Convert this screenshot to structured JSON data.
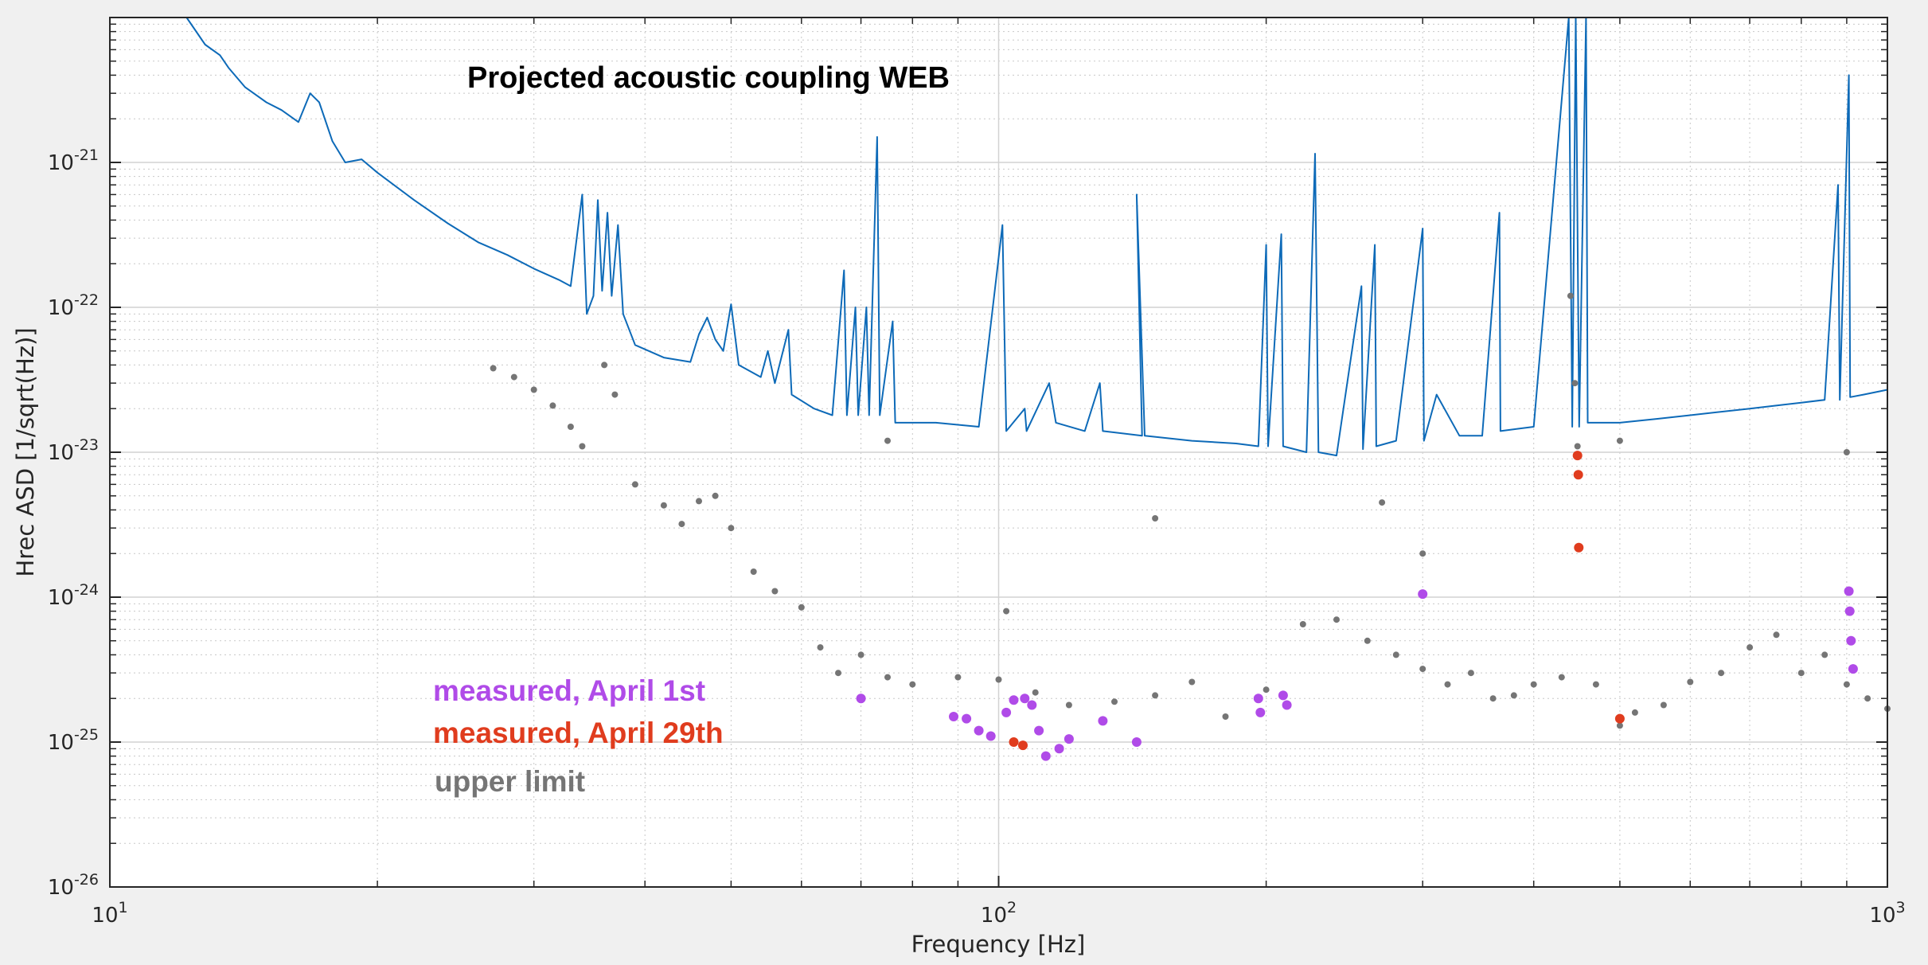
{
  "chart_data": {
    "type": "line",
    "title": "Projected acoustic coupling WEB",
    "xlabel": "Frequency [Hz]",
    "ylabel": "Hrec ASD [1/sqrt(Hz)]",
    "xscale": "log",
    "yscale": "log",
    "xlim": [
      10,
      1000
    ],
    "ylim": [
      1e-26,
      1e-20
    ],
    "grid": true,
    "x_ticks": [
      {
        "value": 10,
        "base": "10",
        "exp": "1"
      },
      {
        "value": 100,
        "base": "10",
        "exp": "2"
      },
      {
        "value": 1000,
        "base": "10",
        "exp": "3"
      }
    ],
    "y_ticks": [
      {
        "value": 1e-26,
        "base": "10",
        "exp": "-26"
      },
      {
        "value": 1e-25,
        "base": "10",
        "exp": "-25"
      },
      {
        "value": 1e-24,
        "base": "10",
        "exp": "-24"
      },
      {
        "value": 1e-23,
        "base": "10",
        "exp": "-23"
      },
      {
        "value": 1e-22,
        "base": "10",
        "exp": "-22"
      },
      {
        "value": 1e-21,
        "base": "10",
        "exp": "-21"
      }
    ],
    "legend": {
      "placement": "lower-left",
      "entries": [
        {
          "label": "measured, April 1st",
          "color": "#b04be8"
        },
        {
          "label": "measured, April 29th",
          "color": "#e03c1e"
        },
        {
          "label": "upper limit",
          "color": "#757575"
        }
      ]
    },
    "series": [
      {
        "kind": "line",
        "color": "#0d6ab8",
        "points": [
          [
            12.2,
            1e-20
          ],
          [
            12.8,
            6.5e-21
          ],
          [
            13.3,
            5.5e-21
          ],
          [
            13.6,
            4.5e-21
          ],
          [
            14.2,
            3.3e-21
          ],
          [
            15.0,
            2.6e-21
          ],
          [
            15.6,
            2.3e-21
          ],
          [
            16.3,
            1.9e-21
          ],
          [
            16.8,
            3e-21
          ],
          [
            17.2,
            2.6e-21
          ],
          [
            17.8,
            1.4e-21
          ],
          [
            18.4,
            1e-21
          ],
          [
            19.2,
            1.05e-21
          ],
          [
            20.0,
            8.5e-22
          ],
          [
            22.0,
            5.5e-22
          ],
          [
            24.0,
            3.8e-22
          ],
          [
            26.0,
            2.8e-22
          ],
          [
            28.0,
            2.3e-22
          ],
          [
            30.0,
            1.85e-22
          ],
          [
            32.0,
            1.55e-22
          ],
          [
            33.0,
            1.4e-22
          ],
          [
            34.0,
            6e-22
          ],
          [
            34.4,
            9e-23
          ],
          [
            35.0,
            1.2e-22
          ],
          [
            35.4,
            5.5e-22
          ],
          [
            35.8,
            1.3e-22
          ],
          [
            36.3,
            4.5e-22
          ],
          [
            36.7,
            1.2e-22
          ],
          [
            37.3,
            3.7e-22
          ],
          [
            37.8,
            9e-23
          ],
          [
            39.0,
            5.5e-23
          ],
          [
            42.0,
            4.5e-23
          ],
          [
            45.0,
            4.2e-23
          ],
          [
            46.0,
            6.5e-23
          ],
          [
            47.0,
            8.5e-23
          ],
          [
            48.0,
            6e-23
          ],
          [
            49.0,
            5e-23
          ],
          [
            50.0,
            1.05e-22
          ],
          [
            51.0,
            4e-23
          ],
          [
            54.0,
            3.3e-23
          ],
          [
            55.0,
            5e-23
          ],
          [
            56.0,
            3e-23
          ],
          [
            58.0,
            7e-23
          ],
          [
            58.5,
            2.5e-23
          ],
          [
            62.0,
            2e-23
          ],
          [
            65.0,
            1.8e-23
          ],
          [
            67.0,
            1.8e-22
          ],
          [
            67.5,
            1.8e-23
          ],
          [
            69.0,
            1e-22
          ],
          [
            69.5,
            1.8e-23
          ],
          [
            71.0,
            1e-22
          ],
          [
            71.5,
            1.8e-23
          ],
          [
            73.0,
            1.5e-21
          ],
          [
            73.5,
            1.8e-23
          ],
          [
            76.0,
            8e-23
          ],
          [
            76.5,
            1.6e-23
          ],
          [
            85.0,
            1.6e-23
          ],
          [
            95.0,
            1.5e-23
          ],
          [
            101.0,
            3.7e-22
          ],
          [
            102.0,
            1.4e-23
          ],
          [
            107.0,
            2e-23
          ],
          [
            107.5,
            1.4e-23
          ],
          [
            114.0,
            3e-23
          ],
          [
            116.0,
            1.6e-23
          ],
          [
            125.0,
            1.4e-23
          ],
          [
            130.0,
            3e-23
          ],
          [
            131.0,
            1.4e-23
          ],
          [
            145.0,
            1.3e-23
          ],
          [
            143.0,
            6e-22
          ],
          [
            146.0,
            1.3e-23
          ],
          [
            165.0,
            1.2e-23
          ],
          [
            185.0,
            1.15e-23
          ],
          [
            196.0,
            1.1e-23
          ],
          [
            200.0,
            2.7e-22
          ],
          [
            201.0,
            1.1e-23
          ],
          [
            208.0,
            3.2e-22
          ],
          [
            209.0,
            1.1e-23
          ],
          [
            222.0,
            1e-23
          ],
          [
            227.0,
            1.15e-21
          ],
          [
            229.0,
            1e-23
          ],
          [
            240.0,
            9.5e-24
          ],
          [
            256.0,
            1.4e-22
          ],
          [
            257.0,
            1.05e-23
          ],
          [
            265.0,
            2.7e-22
          ],
          [
            266.0,
            1.1e-23
          ],
          [
            280.0,
            1.2e-23
          ],
          [
            300.0,
            3.5e-22
          ],
          [
            301.0,
            1.2e-23
          ],
          [
            311.0,
            2.5e-23
          ],
          [
            330.0,
            1.3e-23
          ],
          [
            350.0,
            1.3e-23
          ],
          [
            366.0,
            4.5e-22
          ],
          [
            367.0,
            1.4e-23
          ],
          [
            400.0,
            1.5e-23
          ],
          [
            438.0,
            1e-20
          ],
          [
            442.0,
            1.5e-23
          ],
          [
            446.0,
            1e-20
          ],
          [
            450.0,
            1.5e-23
          ],
          [
            458.0,
            1e-20
          ],
          [
            460.0,
            1.6e-23
          ],
          [
            500.0,
            1.6e-23
          ],
          [
            550.0,
            1.7e-23
          ],
          [
            600.0,
            1.8e-23
          ],
          [
            700.0,
            2e-23
          ],
          [
            800.0,
            2.2e-23
          ],
          [
            850.0,
            2.3e-23
          ],
          [
            880.0,
            7e-22
          ],
          [
            884.0,
            2.3e-23
          ],
          [
            905.0,
            4e-21
          ],
          [
            908.0,
            2.4e-23
          ],
          [
            940.0,
            2.5e-23
          ],
          [
            1000.0,
            2.7e-23
          ]
        ]
      },
      {
        "kind": "scatter",
        "name": "upper limit",
        "color": "#757575",
        "points": [
          [
            27.0,
            3.8e-23
          ],
          [
            28.5,
            3.3e-23
          ],
          [
            30.0,
            2.7e-23
          ],
          [
            31.5,
            2.1e-23
          ],
          [
            33.0,
            1.5e-23
          ],
          [
            34.0,
            1.1e-23
          ],
          [
            36.0,
            4e-23
          ],
          [
            37.0,
            2.5e-23
          ],
          [
            39.0,
            6e-24
          ],
          [
            42.0,
            4.3e-24
          ],
          [
            44.0,
            3.2e-24
          ],
          [
            46.0,
            4.6e-24
          ],
          [
            48.0,
            5e-24
          ],
          [
            50.0,
            3e-24
          ],
          [
            53.0,
            1.5e-24
          ],
          [
            56.0,
            1.1e-24
          ],
          [
            60.0,
            8.5e-25
          ],
          [
            63.0,
            4.5e-25
          ],
          [
            66.0,
            3e-25
          ],
          [
            70.0,
            4e-25
          ],
          [
            75.0,
            2.8e-25
          ],
          [
            80.0,
            2.5e-25
          ],
          [
            90.0,
            2.8e-25
          ],
          [
            100.0,
            2.7e-25
          ],
          [
            110.0,
            2.2e-25
          ],
          [
            120.0,
            1.8e-25
          ],
          [
            135.0,
            1.9e-25
          ],
          [
            150.0,
            2.1e-25
          ],
          [
            165.0,
            2.6e-25
          ],
          [
            180.0,
            1.5e-25
          ],
          [
            200.0,
            2.3e-25
          ],
          [
            220.0,
            6.5e-25
          ],
          [
            240.0,
            7e-25
          ],
          [
            260.0,
            5e-25
          ],
          [
            280.0,
            4e-25
          ],
          [
            300.0,
            3.2e-25
          ],
          [
            320.0,
            2.5e-25
          ],
          [
            340.0,
            3e-25
          ],
          [
            360.0,
            2e-25
          ],
          [
            380.0,
            2.1e-25
          ],
          [
            400.0,
            2.5e-25
          ],
          [
            430.0,
            2.8e-25
          ],
          [
            470.0,
            2.5e-25
          ],
          [
            500.0,
            1.3e-25
          ],
          [
            520.0,
            1.6e-25
          ],
          [
            560.0,
            1.8e-25
          ],
          [
            600.0,
            2.6e-25
          ],
          [
            650.0,
            3e-25
          ],
          [
            700.0,
            4.5e-25
          ],
          [
            750.0,
            5.5e-25
          ],
          [
            800.0,
            3e-25
          ],
          [
            850.0,
            4e-25
          ],
          [
            900.0,
            2.5e-25
          ],
          [
            950.0,
            2e-25
          ],
          [
            1000.0,
            1.7e-25
          ],
          [
            440.0,
            1.2e-22
          ],
          [
            445.0,
            3e-23
          ],
          [
            448.0,
            1.1e-23
          ],
          [
            500.0,
            1.2e-23
          ],
          [
            900.0,
            1e-23
          ],
          [
            300.0,
            2e-24
          ],
          [
            270.0,
            4.5e-24
          ],
          [
            150.0,
            3.5e-24
          ],
          [
            75.0,
            1.2e-23
          ],
          [
            102.0,
            8e-25
          ]
        ]
      },
      {
        "kind": "scatter",
        "name": "measured, April 1st",
        "color": "#b04be8",
        "points": [
          [
            70.0,
            2e-25
          ],
          [
            89.0,
            1.5e-25
          ],
          [
            92.0,
            1.45e-25
          ],
          [
            95.0,
            1.2e-25
          ],
          [
            98.0,
            1.1e-25
          ],
          [
            102.0,
            1.6e-25
          ],
          [
            104.0,
            1.95e-25
          ],
          [
            107.0,
            2e-25
          ],
          [
            109.0,
            1.8e-25
          ],
          [
            111.0,
            1.2e-25
          ],
          [
            113.0,
            8e-26
          ],
          [
            117.0,
            9e-26
          ],
          [
            120.0,
            1.05e-25
          ],
          [
            131.0,
            1.4e-25
          ],
          [
            143.0,
            1e-25
          ],
          [
            196.0,
            2e-25
          ],
          [
            197.0,
            1.6e-25
          ],
          [
            209.0,
            2.1e-25
          ],
          [
            211.0,
            1.8e-25
          ],
          [
            300.0,
            1.05e-24
          ],
          [
            905.0,
            1.1e-24
          ],
          [
            907.0,
            8e-25
          ],
          [
            910.0,
            5e-25
          ],
          [
            915.0,
            3.2e-25
          ]
        ]
      },
      {
        "kind": "scatter",
        "name": "measured, April 29th",
        "color": "#e03c1e",
        "points": [
          [
            104.0,
            1e-25
          ],
          [
            106.5,
            9.5e-26
          ],
          [
            448.0,
            9.5e-24
          ],
          [
            449.0,
            7e-24
          ],
          [
            449.5,
            2.2e-24
          ],
          [
            500.0,
            1.45e-25
          ]
        ]
      }
    ]
  }
}
